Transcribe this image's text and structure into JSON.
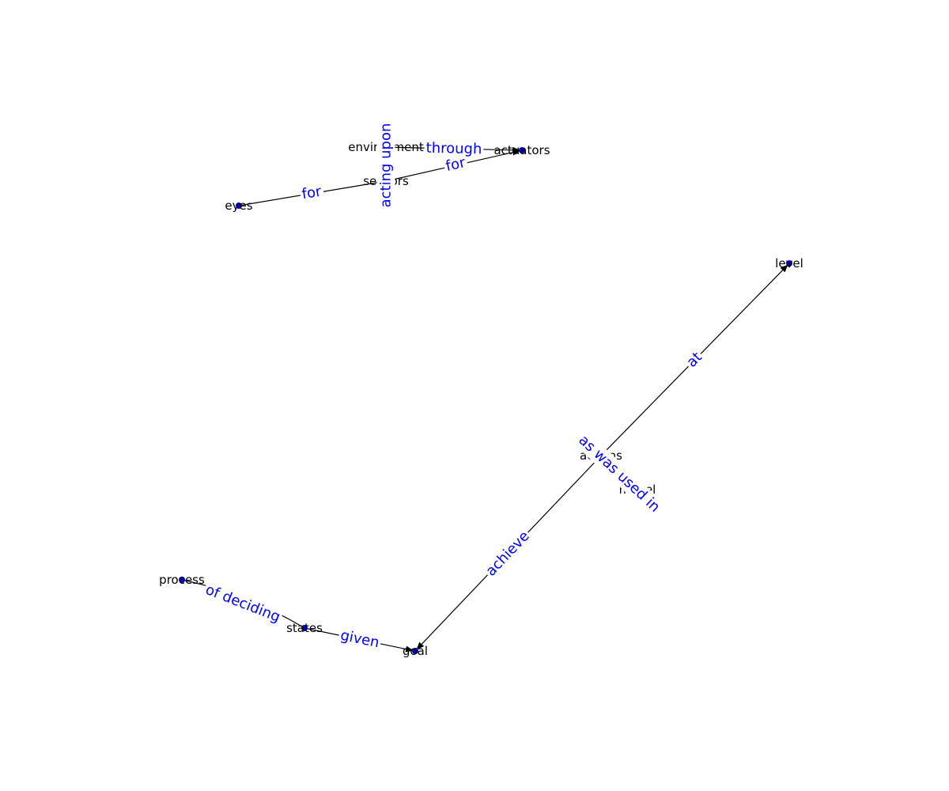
{
  "colors": {
    "node": "#0000cc",
    "edge": "#000000",
    "edge_label": "#0000ff",
    "node_label": "#000000"
  },
  "nodes": [
    {
      "id": "environment",
      "label": "environment"
    },
    {
      "id": "actuators",
      "label": "actuators"
    },
    {
      "id": "sensors",
      "label": "sensors"
    },
    {
      "id": "eyes",
      "label": "eyes"
    },
    {
      "id": "level",
      "label": "level"
    },
    {
      "id": "actions",
      "label": "actions"
    },
    {
      "id": "model",
      "label": "model"
    },
    {
      "id": "process",
      "label": "process"
    },
    {
      "id": "states",
      "label": "states"
    },
    {
      "id": "goal",
      "label": "goal"
    }
  ],
  "edges": [
    {
      "id": "e1",
      "source": "environment",
      "target": "actuators",
      "label": "through"
    },
    {
      "id": "e2",
      "source": "sensors",
      "target": "actuators",
      "label": "for"
    },
    {
      "id": "e3",
      "source": "eyes",
      "target": "sensors",
      "label": "for"
    },
    {
      "id": "e4",
      "source": "sensors",
      "target": "environment",
      "label": "acting upon"
    },
    {
      "id": "e5",
      "source": "actions",
      "target": "level",
      "label": "at"
    },
    {
      "id": "e6",
      "source": "actions",
      "target": "model",
      "label": "as was used in"
    },
    {
      "id": "e7",
      "source": "actions",
      "target": "goal",
      "label": "achieve"
    },
    {
      "id": "e8",
      "source": "process",
      "target": "states",
      "label": "of deciding"
    },
    {
      "id": "e9",
      "source": "states",
      "target": "goal",
      "label": "given"
    }
  ]
}
